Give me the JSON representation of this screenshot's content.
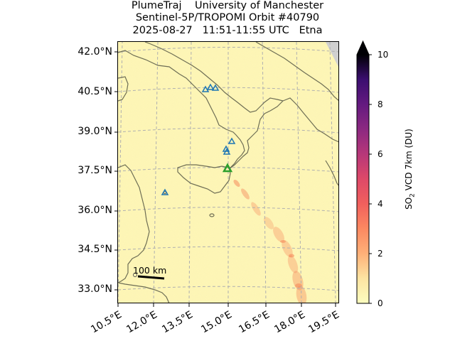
{
  "title": {
    "line1": "PlumeTraj    University of Manchester",
    "line2": "Sentinel-5P/TROPOMI Orbit #40790",
    "line3": "2025-08-27   11:51-11:55 UTC   Etna"
  },
  "map": {
    "lat_labels": [
      "42.0°N",
      "40.5°N",
      "39.0°N",
      "37.5°N",
      "36.0°N",
      "34.5°N",
      "33.0°N"
    ],
    "lon_labels": [
      "10.5°E",
      "12.0°E",
      "13.5°E",
      "15.0°E",
      "16.5°E",
      "18.0°E",
      "19.5°E"
    ],
    "scale_bar_label": "100 km",
    "gridlines": true,
    "background_color": "#fdf6b4",
    "land_outline_color": "#6e6e55",
    "volcano_color": "#2ca02c",
    "other_volcano_color": "#1f77b4"
  },
  "colorbar": {
    "label_prefix": "SO",
    "label_sub": "2",
    "label_suffix": " VCD 7km (DU)",
    "ticks": [
      "0",
      "2",
      "4",
      "6",
      "8",
      "10"
    ],
    "min": 0,
    "max": 10,
    "extend": "max",
    "colormap": "magma_r"
  }
}
